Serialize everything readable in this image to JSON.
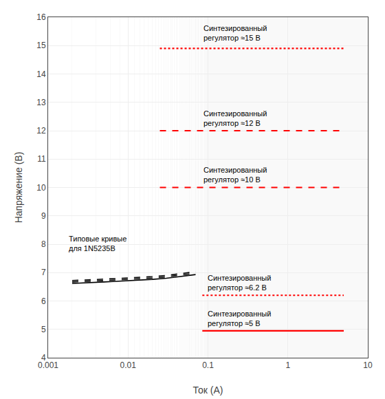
{
  "chart_data": {
    "type": "line",
    "xlabel": "Ток (А)",
    "ylabel": "Напряжение (В)",
    "log": "x",
    "grid": true,
    "xlim": [
      0.001,
      10
    ],
    "ylim": [
      4,
      16
    ],
    "xticks": [
      0.001,
      0.01,
      0.1,
      1,
      10
    ],
    "yticks": [
      4,
      5,
      6,
      7,
      8,
      9,
      10,
      11,
      12,
      13,
      14,
      15,
      16
    ],
    "series": [
      {
        "x": [
          0.025,
          5.0
        ],
        "values": [
          14.9,
          14.9
        ],
        "color": "red",
        "line_style": "dotted"
      },
      {
        "x": [
          0.025,
          5.0
        ],
        "values": [
          12.0,
          12.0
        ],
        "color": "red",
        "line_style": "dashed"
      },
      {
        "x": [
          0.025,
          5.0
        ],
        "values": [
          10.0,
          10.0
        ],
        "color": "red",
        "line_style": "dashed"
      },
      {
        "x": [
          0.085,
          5.0
        ],
        "values": [
          6.2,
          6.2
        ],
        "color": "red",
        "line_style": "dotted"
      },
      {
        "x": [
          0.085,
          5.0
        ],
        "values": [
          4.95,
          4.95
        ],
        "color": "red",
        "line_style": "solid"
      },
      {
        "x": [
          0.002,
          0.003,
          0.005,
          0.007,
          0.01,
          0.02,
          0.03,
          0.05,
          0.07
        ],
        "values": [
          6.62,
          6.65,
          6.67,
          6.69,
          6.71,
          6.76,
          6.8,
          6.87,
          6.93
        ],
        "color": "black",
        "line_style": "solid"
      },
      {
        "x": [
          0.002,
          0.003,
          0.005,
          0.007,
          0.01,
          0.02,
          0.03,
          0.05,
          0.07
        ],
        "values": [
          6.67,
          6.7,
          6.72,
          6.74,
          6.76,
          6.81,
          6.85,
          6.92,
          6.98
        ],
        "color": "black",
        "line_style": "dashed"
      },
      {
        "x": [
          0.002,
          0.003,
          0.005,
          0.007,
          0.01,
          0.02,
          0.03,
          0.05,
          0.07
        ],
        "values": [
          6.72,
          6.75,
          6.77,
          6.79,
          6.81,
          6.86,
          6.9,
          6.97,
          7.03
        ],
        "color": "black",
        "line_style": "dashed"
      }
    ],
    "annotations": [
      {
        "text": "Синтезированный\nрегулятор ≈15 В",
        "x": 0.085,
        "y": 15.08
      },
      {
        "text": "Синтезированный\nрегулятор ≈12 В",
        "x": 0.085,
        "y": 12.08
      },
      {
        "text": "Синтезированный\nрегулятор ≈10 В",
        "x": 0.085,
        "y": 10.08
      },
      {
        "text": "Синтезированный\nрегулятор ≈6.2 В",
        "x": 0.095,
        "y": 6.28
      },
      {
        "text": "Синтезированный\nрегулятор ≈5 В",
        "x": 0.095,
        "y": 5.03
      },
      {
        "text": "Типовые кривые\nдля 1N5235B",
        "x": 0.00175,
        "y": 7.65
      }
    ]
  }
}
